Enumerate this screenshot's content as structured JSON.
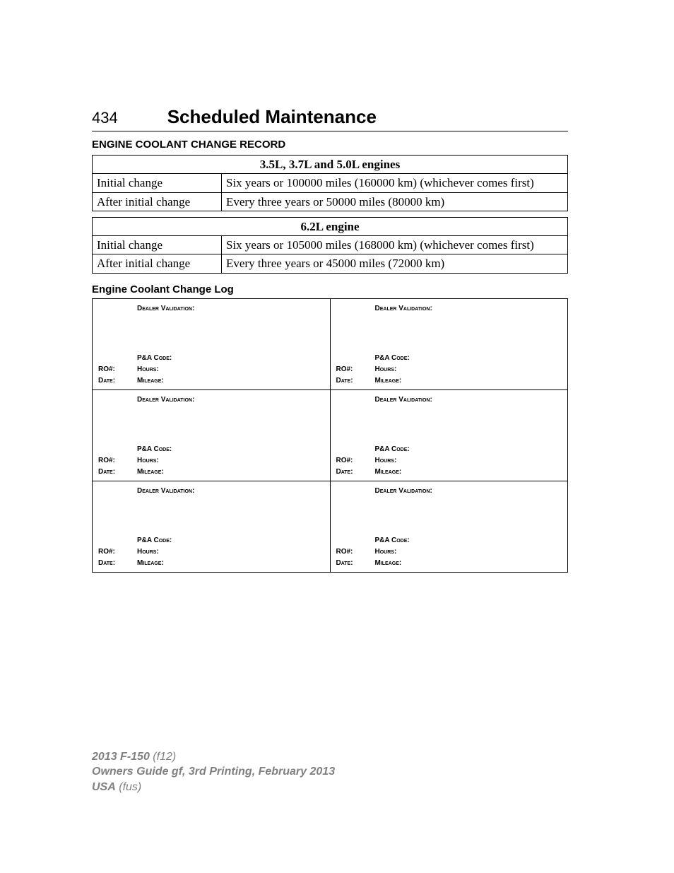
{
  "header": {
    "page_number": "434",
    "title": "Scheduled Maintenance"
  },
  "record_section": {
    "heading": "ENGINE COOLANT CHANGE RECORD",
    "tables": [
      {
        "title": "3.5L, 3.7L and 5.0L engines",
        "rows": [
          {
            "label": "Initial change",
            "value": "Six years or 100000 miles (160000 km) (whichever comes first)"
          },
          {
            "label": "After initial change",
            "value": "Every three years or 50000 miles (80000 km)"
          }
        ]
      },
      {
        "title": "6.2L engine",
        "rows": [
          {
            "label": "Initial change",
            "value": "Six years or 105000 miles (168000 km) (whichever comes first)"
          },
          {
            "label": "After initial change",
            "value": "Every three years or 45000 miles (72000 km)"
          }
        ]
      }
    ]
  },
  "log_section": {
    "heading": "Engine Coolant Change Log",
    "cell_labels": {
      "dealer_validation": "Dealer Validation:",
      "pa_code": "P&A Code:",
      "ro": "RO#:",
      "hours": "Hours:",
      "date": "Date:",
      "mileage": "Mileage:"
    },
    "rows": 3,
    "cols": 2
  },
  "footer": {
    "line1_bold": "2013 F-150",
    "line1_ital": "(f12)",
    "line2": "Owners Guide gf, 3rd Printing, February 2013",
    "line3_bold": "USA",
    "line3_ital": "(fus)"
  }
}
